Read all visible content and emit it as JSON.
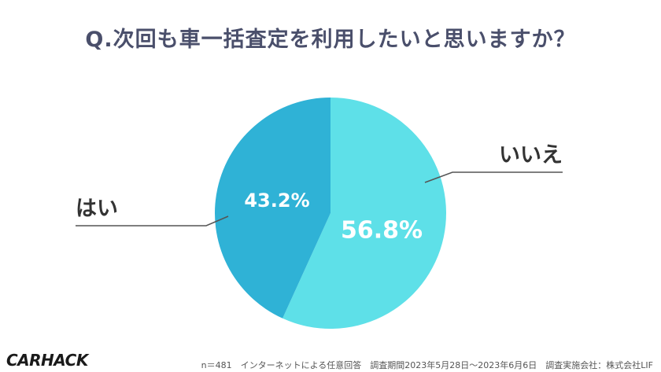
{
  "chart_data": {
    "type": "pie",
    "title": "Q.次回も車一括査定を利用したいと思いますか？",
    "slices": [
      {
        "label": "はい",
        "value": 43.2,
        "value_label": "43.2%",
        "color": "#2fb2d6"
      },
      {
        "label": "いいえ",
        "value": 56.8,
        "value_label": "56.8%",
        "color": "#5ee0e8"
      }
    ],
    "start": "12 o'clock",
    "direction": "clockwise, starting with いいえ",
    "legend": "callout labels with leader lines"
  },
  "footer": {
    "logo": "CARHACK",
    "note": "n＝481　インターネットによる任意回答　調査期間2023年5月28日〜2023年6月6日　調査実施会社：株式会社LIF"
  },
  "colors": {
    "title": "#4a4f6b",
    "label_text": "#333333",
    "leader_line": "#555555",
    "percent_text": "#ffffff"
  }
}
